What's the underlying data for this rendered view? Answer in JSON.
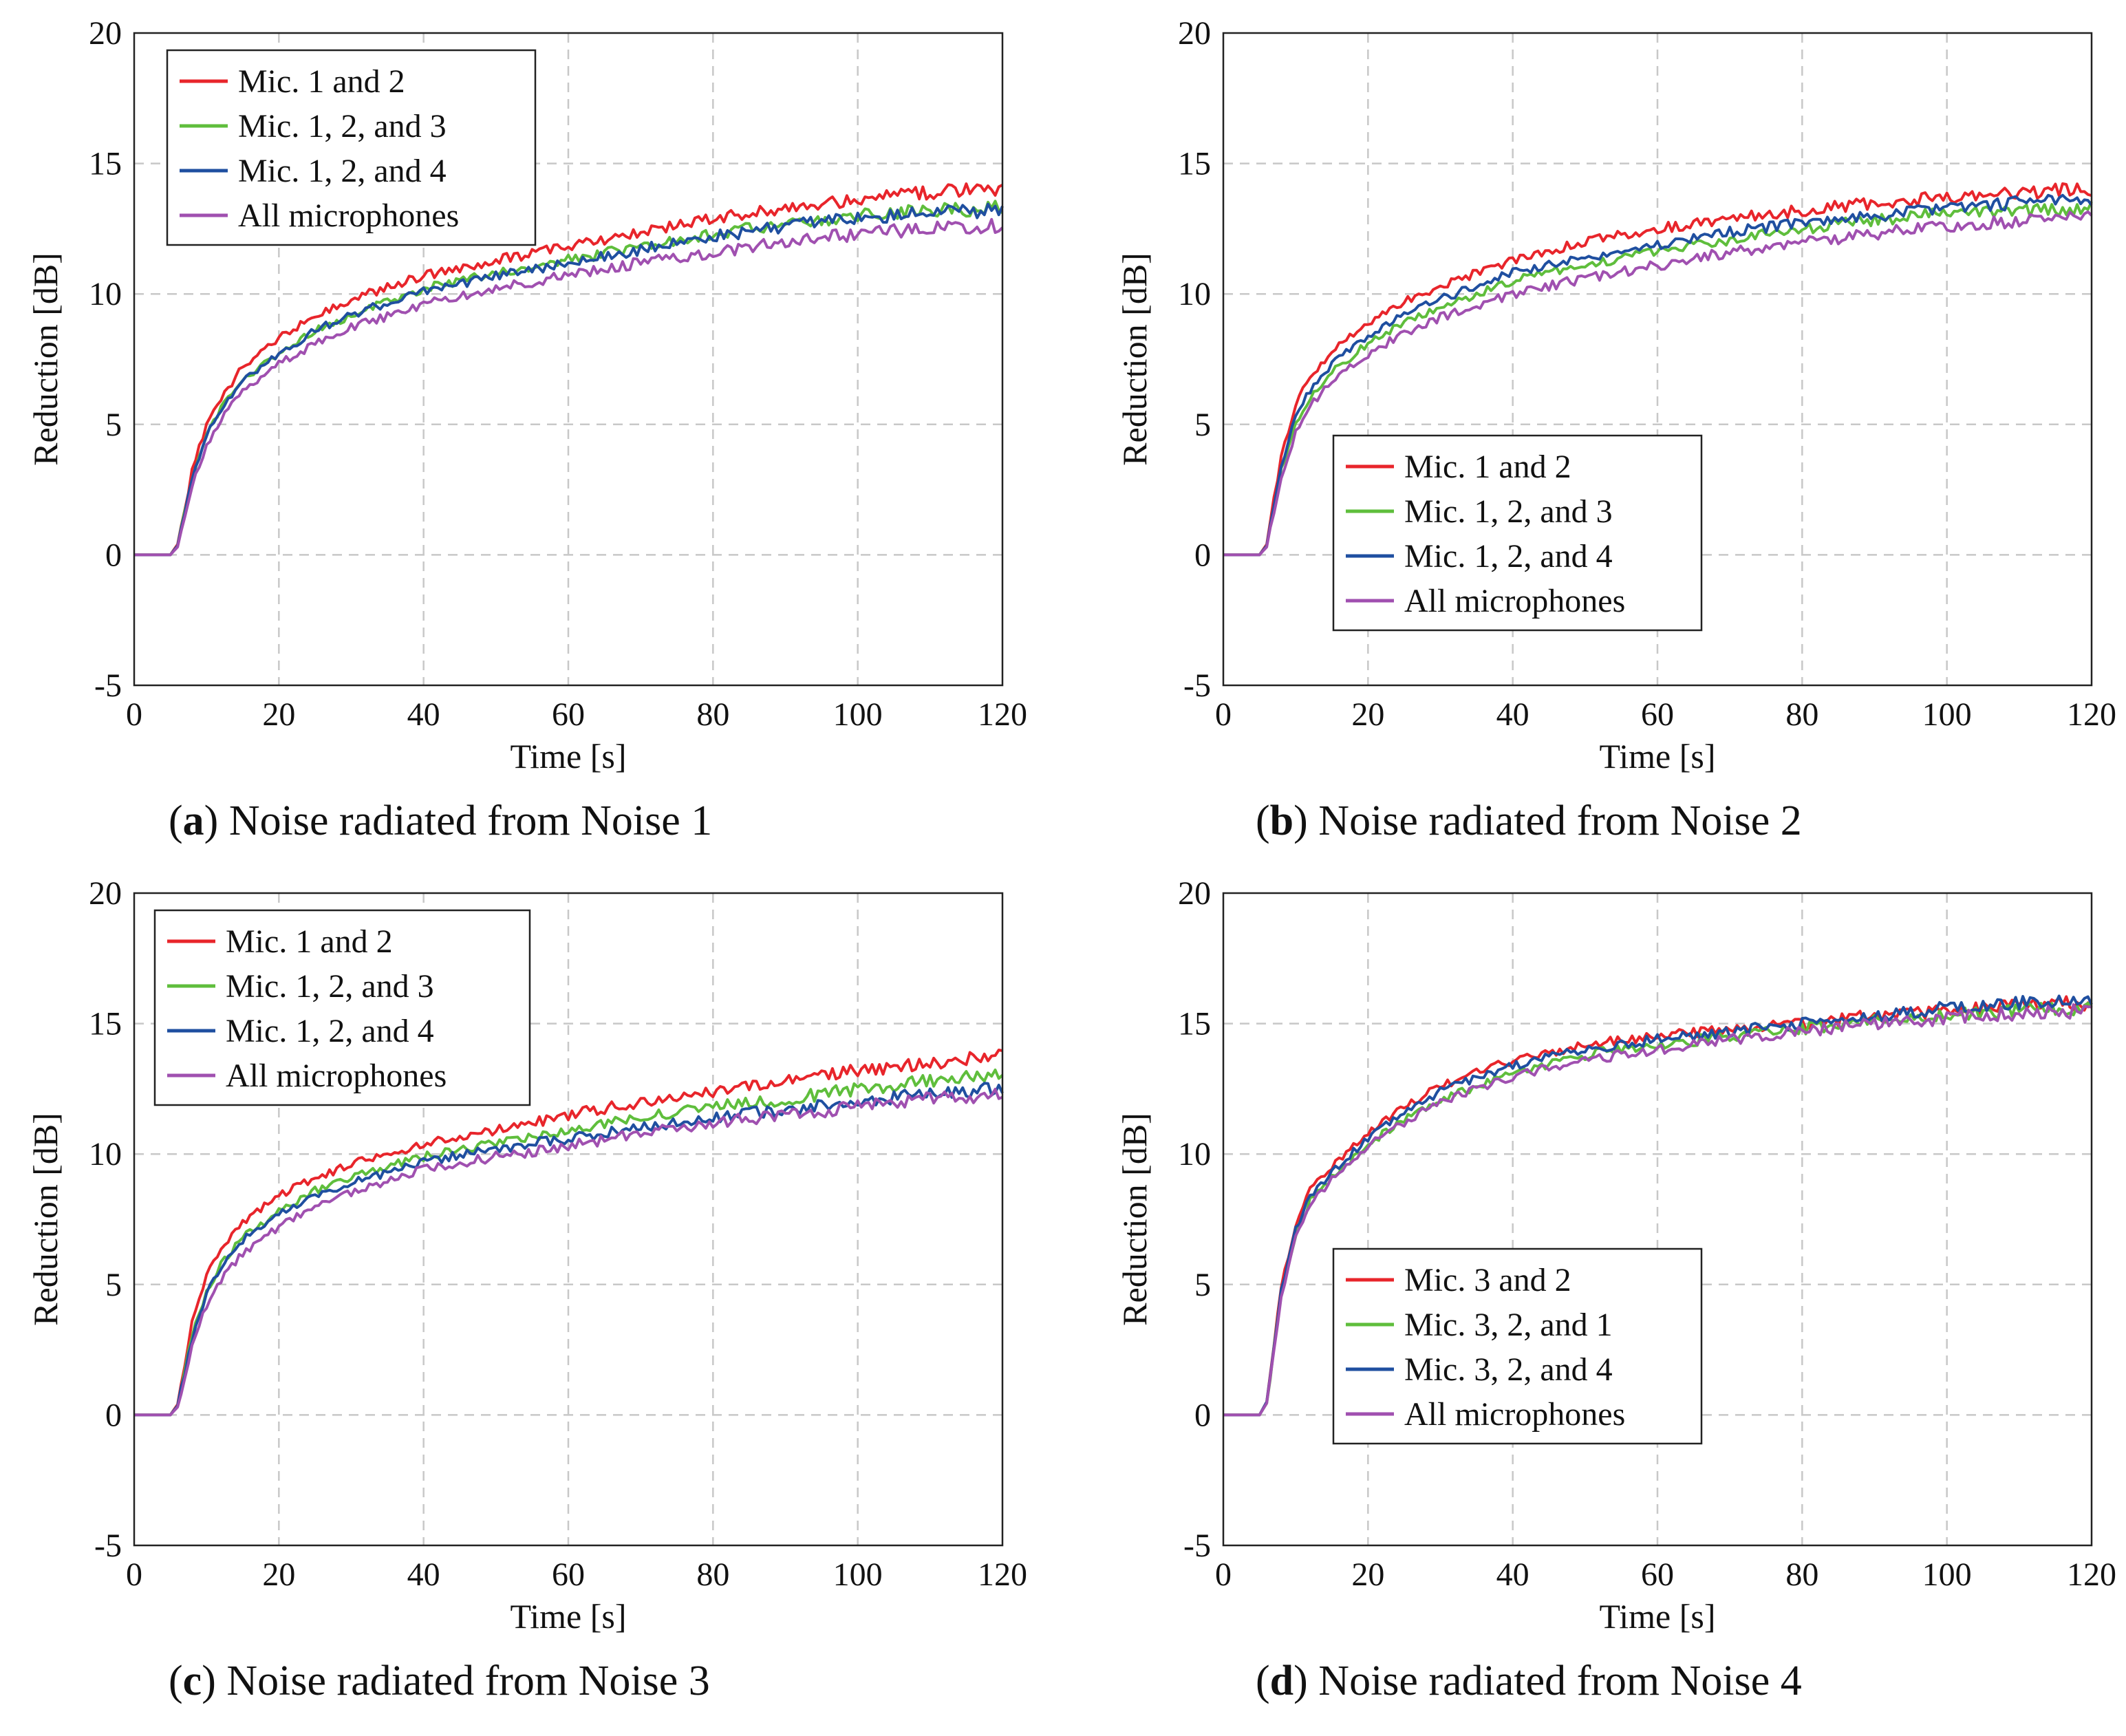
{
  "figure": {
    "panels": [
      {
        "letter": "a",
        "caption": "Noise radiated from Noise 1"
      },
      {
        "letter": "b",
        "caption": "Noise radiated from Noise 2"
      },
      {
        "letter": "c",
        "caption": "Noise radiated from Noise 3"
      },
      {
        "letter": "d",
        "caption": "Noise radiated from Noise 4"
      }
    ]
  },
  "chart_data": [
    {
      "type": "line",
      "title": "(a) Noise radiated from Noise 1",
      "xlabel": "Time [s]",
      "ylabel": "Reduction [dB]",
      "xlim": [
        0,
        120
      ],
      "ylim": [
        -5,
        20
      ],
      "xticks": [
        0,
        20,
        40,
        60,
        80,
        100,
        120
      ],
      "yticks": [
        -5,
        0,
        5,
        10,
        15,
        20
      ],
      "grid": true,
      "legend_position": "top-left",
      "x": [
        0,
        5,
        6,
        8,
        10,
        12,
        15,
        20,
        25,
        30,
        40,
        50,
        60,
        70,
        80,
        90,
        100,
        110,
        120
      ],
      "series": [
        {
          "name": "Mic. 1 and 2",
          "color": "#e8252b",
          "values": [
            0,
            0,
            0.4,
            3.2,
            5.0,
            6.0,
            7.2,
            8.3,
            9.2,
            9.8,
            10.7,
            11.3,
            11.8,
            12.4,
            12.9,
            13.3,
            13.6,
            13.9,
            14.0
          ]
        },
        {
          "name": "Mic. 1, 2, and 3",
          "color": "#5fbe3c",
          "values": [
            0,
            0,
            0.35,
            2.9,
            4.6,
            5.6,
            6.7,
            7.7,
            8.6,
            9.2,
            10.2,
            10.8,
            11.3,
            11.8,
            12.3,
            12.7,
            13.0,
            13.2,
            13.3
          ]
        },
        {
          "name": "Mic. 1, 2, and 4",
          "color": "#1f4fa0",
          "values": [
            0,
            0,
            0.35,
            2.9,
            4.6,
            5.6,
            6.7,
            7.7,
            8.6,
            9.2,
            10.1,
            10.7,
            11.2,
            11.7,
            12.2,
            12.6,
            12.9,
            13.1,
            13.2
          ]
        },
        {
          "name": "All microphones",
          "color": "#a050b0",
          "values": [
            0,
            0,
            0.3,
            2.6,
            4.2,
            5.2,
            6.3,
            7.3,
            8.1,
            8.7,
            9.6,
            10.2,
            10.7,
            11.2,
            11.6,
            12.0,
            12.3,
            12.5,
            12.6
          ]
        }
      ]
    },
    {
      "type": "line",
      "title": "(b) Noise radiated from Noise 2",
      "xlabel": "Time [s]",
      "ylabel": "Reduction [dB]",
      "xlim": [
        0,
        120
      ],
      "ylim": [
        -5,
        20
      ],
      "xticks": [
        0,
        20,
        40,
        60,
        80,
        100,
        120
      ],
      "yticks": [
        -5,
        0,
        5,
        10,
        15,
        20
      ],
      "grid": true,
      "legend_position": "lower-middle",
      "x": [
        0,
        5,
        6,
        8,
        10,
        12,
        15,
        20,
        25,
        30,
        40,
        50,
        60,
        70,
        80,
        90,
        100,
        110,
        120
      ],
      "series": [
        {
          "name": "Mic. 1 and 2",
          "color": "#e8252b",
          "values": [
            0,
            0,
            0.4,
            3.8,
            5.8,
            6.8,
            7.8,
            8.9,
            9.7,
            10.3,
            11.3,
            12.0,
            12.5,
            12.9,
            13.2,
            13.5,
            13.7,
            13.9,
            14.0
          ]
        },
        {
          "name": "Mic. 1, 2, and 3",
          "color": "#5fbe3c",
          "values": [
            0,
            0,
            0.35,
            3.2,
            5.0,
            6.0,
            7.0,
            8.1,
            8.9,
            9.5,
            10.5,
            11.1,
            11.6,
            12.1,
            12.5,
            12.8,
            13.1,
            13.2,
            13.3
          ]
        },
        {
          "name": "Mic. 1, 2, and 4",
          "color": "#1f4fa0",
          "values": [
            0,
            0,
            0.35,
            3.4,
            5.3,
            6.3,
            7.3,
            8.4,
            9.2,
            9.8,
            10.8,
            11.4,
            11.9,
            12.4,
            12.7,
            13.0,
            13.3,
            13.5,
            13.6
          ]
        },
        {
          "name": "All microphones",
          "color": "#a050b0",
          "values": [
            0,
            0,
            0.3,
            3.0,
            4.7,
            5.7,
            6.7,
            7.7,
            8.5,
            9.1,
            10.0,
            10.6,
            11.1,
            11.6,
            12.0,
            12.3,
            12.6,
            12.8,
            12.9
          ]
        }
      ]
    },
    {
      "type": "line",
      "title": "(c) Noise radiated from Noise 3",
      "xlabel": "Time [s]",
      "ylabel": "Reduction [dB]",
      "xlim": [
        0,
        120
      ],
      "ylim": [
        -5,
        20
      ],
      "xticks": [
        0,
        20,
        40,
        60,
        80,
        100,
        120
      ],
      "yticks": [
        -5,
        0,
        5,
        10,
        15,
        20
      ],
      "grid": true,
      "legend_position": "top-left",
      "x": [
        0,
        5,
        6,
        8,
        10,
        12,
        15,
        20,
        25,
        30,
        40,
        50,
        60,
        70,
        80,
        90,
        100,
        110,
        120
      ],
      "series": [
        {
          "name": "Mic. 1 and 2",
          "color": "#e8252b",
          "values": [
            0,
            0,
            0.4,
            3.5,
            5.3,
            6.4,
            7.4,
            8.4,
            9.1,
            9.6,
            10.4,
            10.9,
            11.5,
            12.0,
            12.4,
            12.8,
            13.2,
            13.5,
            13.8
          ]
        },
        {
          "name": "Mic. 1, 2, and 3",
          "color": "#5fbe3c",
          "values": [
            0,
            0,
            0.35,
            3.0,
            4.7,
            5.8,
            6.8,
            7.8,
            8.6,
            9.1,
            9.9,
            10.4,
            10.9,
            11.4,
            11.8,
            12.1,
            12.5,
            12.8,
            13.0
          ]
        },
        {
          "name": "Mic. 1, 2, and 4",
          "color": "#1f4fa0",
          "values": [
            0,
            0,
            0.35,
            2.9,
            4.6,
            5.7,
            6.7,
            7.7,
            8.4,
            8.9,
            9.7,
            10.2,
            10.6,
            11.0,
            11.4,
            11.7,
            12.0,
            12.3,
            12.5
          ]
        },
        {
          "name": "All microphones",
          "color": "#a050b0",
          "values": [
            0,
            0,
            0.3,
            2.6,
            4.2,
            5.2,
            6.2,
            7.2,
            8.0,
            8.5,
            9.4,
            9.9,
            10.3,
            10.8,
            11.2,
            11.5,
            11.8,
            12.1,
            12.3
          ]
        }
      ]
    },
    {
      "type": "line",
      "title": "(d) Noise radiated from Noise 4",
      "xlabel": "Time [s]",
      "ylabel": "Reduction [dB]",
      "xlim": [
        0,
        120
      ],
      "ylim": [
        -5,
        20
      ],
      "xticks": [
        0,
        20,
        40,
        60,
        80,
        100,
        120
      ],
      "yticks": [
        -5,
        0,
        5,
        10,
        15,
        20
      ],
      "grid": true,
      "legend_position": "lower-middle",
      "x": [
        0,
        5,
        6,
        8,
        10,
        12,
        15,
        20,
        25,
        30,
        40,
        50,
        60,
        70,
        80,
        90,
        100,
        110,
        120
      ],
      "series": [
        {
          "name": "Mic. 3 and 2",
          "color": "#e8252b",
          "values": [
            0,
            0,
            0.5,
            5.0,
            7.3,
            8.6,
            9.5,
            10.8,
            11.8,
            12.6,
            13.6,
            14.2,
            14.5,
            14.8,
            15.0,
            15.3,
            15.5,
            15.7,
            15.8
          ]
        },
        {
          "name": "Mic. 3, 2, and 1",
          "color": "#5fbe3c",
          "values": [
            0,
            0,
            0.45,
            4.6,
            6.9,
            8.2,
            9.1,
            10.4,
            11.3,
            12.1,
            13.1,
            13.8,
            14.2,
            14.5,
            14.8,
            15.1,
            15.3,
            15.5,
            15.6
          ]
        },
        {
          "name": "Mic. 3, 2, and 4",
          "color": "#1f4fa0",
          "values": [
            0,
            0,
            0.5,
            4.8,
            7.1,
            8.4,
            9.3,
            10.6,
            11.6,
            12.4,
            13.4,
            14.0,
            14.4,
            14.7,
            15.0,
            15.3,
            15.6,
            15.8,
            15.9
          ]
        },
        {
          "name": "All microphones",
          "color": "#a050b0",
          "values": [
            0,
            0,
            0.45,
            4.5,
            6.8,
            8.1,
            9.0,
            10.3,
            11.2,
            12.0,
            13.0,
            13.6,
            14.0,
            14.4,
            14.7,
            15.0,
            15.2,
            15.4,
            15.5
          ]
        }
      ]
    }
  ]
}
